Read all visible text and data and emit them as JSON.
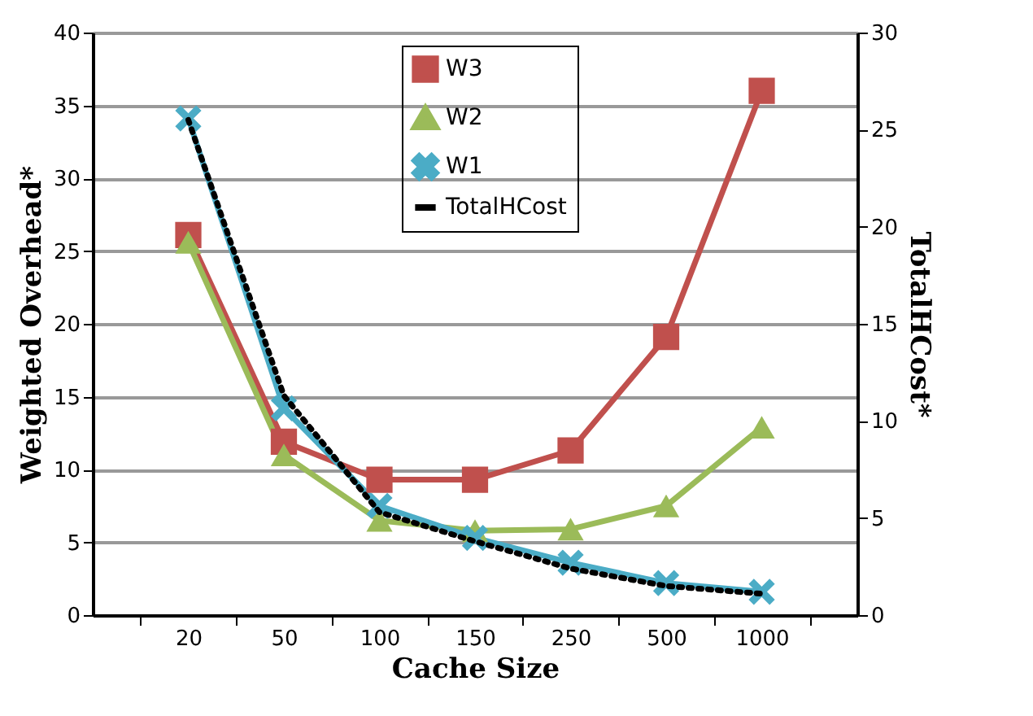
{
  "chart_data": {
    "type": "line",
    "xlabel": "Cache Size",
    "ylabel": "Weighted Overhead*",
    "y2label": "TotalHCost*",
    "categories": [
      "20",
      "50",
      "100",
      "150",
      "250",
      "500",
      "1000"
    ],
    "series": [
      {
        "name": "W3",
        "color": "#c0504d",
        "marker": "square",
        "values": [
          26.1,
          11.9,
          9.3,
          9.3,
          11.3,
          19.1,
          36
        ]
      },
      {
        "name": "W2",
        "color": "#9bbb59",
        "marker": "triangle",
        "values": [
          25.6,
          11,
          6.5,
          5.8,
          5.9,
          7.5,
          12.9
        ]
      },
      {
        "name": "W1",
        "color": "#4bacc6",
        "marker": "cross",
        "values": [
          34.1,
          14.2,
          7.5,
          5.3,
          3.6,
          2.2,
          1.6
        ]
      },
      {
        "name": "TotalHCost",
        "color": "#000000",
        "marker": "none",
        "line_style": "dotted",
        "axis": "y2",
        "values": [
          25.5,
          11.3,
          5.3,
          3.8,
          2.4,
          1.5,
          1.1
        ]
      }
    ],
    "ylim": [
      0,
      40
    ],
    "yticks": [
      0,
      5,
      10,
      15,
      20,
      25,
      30,
      35,
      40
    ],
    "y2lim": [
      0,
      30
    ],
    "y2ticks": [
      0,
      5,
      10,
      15,
      20,
      25,
      30
    ],
    "grid": "y",
    "legend": "top"
  }
}
